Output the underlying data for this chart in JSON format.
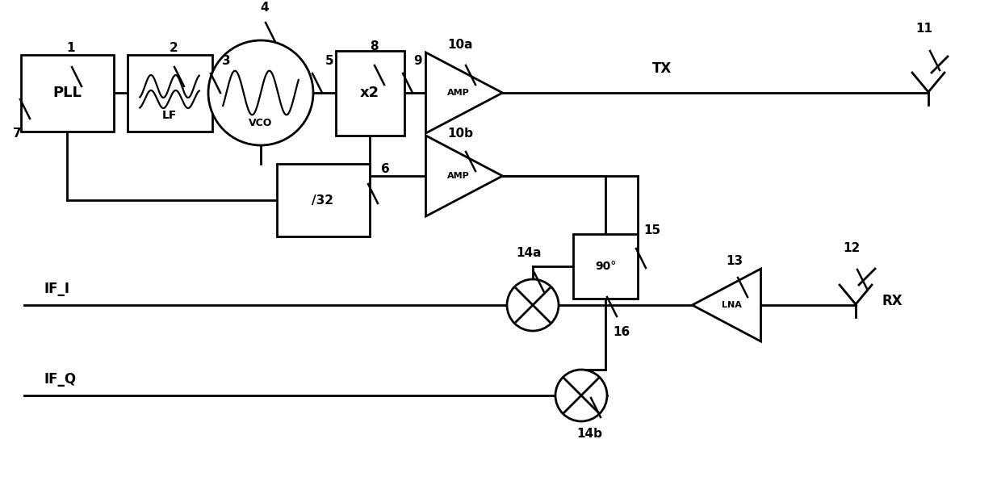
{
  "bg_color": "#ffffff",
  "lc": "#000000",
  "lw": 2.0,
  "fig_w": 12.4,
  "fig_h": 5.96,
  "xlim": [
    0,
    1240
  ],
  "ylim": [
    0,
    596
  ]
}
